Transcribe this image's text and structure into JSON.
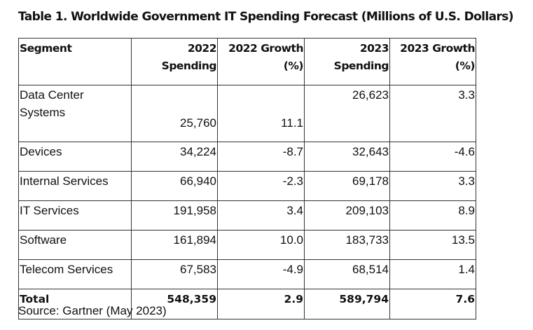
{
  "title": "Table 1. Worldwide Government IT Spending Forecast (Millions of U.S. Dollars)",
  "columns": [
    "Segment",
    "2022 Spending",
    "2022 Growth (%)",
    "2023 Spending",
    "2023 Growth (%)"
  ],
  "header_lines": [
    [
      "Segment",
      ""
    ],
    [
      "2022",
      "Spending"
    ],
    [
      "2022 Growth",
      "(%)"
    ],
    [
      "2023",
      "Spending"
    ],
    [
      "2023 Growth",
      "(%)"
    ]
  ],
  "rows": [
    {
      "segment": "Data Center Systems",
      "s2022": "25,760",
      "g2022": "11.1",
      "s2023": "26,623",
      "g2023": "3.3"
    },
    {
      "segment": "Devices",
      "s2022": "34,224",
      "g2022": "-8.7",
      "s2023": "32,643",
      "g2023": "-4.6"
    },
    {
      "segment": "Internal Services",
      "s2022": "66,940",
      "g2022": "-2.3",
      "s2023": "69,178",
      "g2023": "3.3"
    },
    {
      "segment": "IT Services",
      "s2022": "191,958",
      "g2022": "3.4",
      "s2023": "209,103",
      "g2023": "8.9"
    },
    {
      "segment": "Software",
      "s2022": "161,894",
      "g2022": "10.0",
      "s2023": "183,733",
      "g2023": "13.5"
    },
    {
      "segment": "Telecom Services",
      "s2022": "67,583",
      "g2022": "-4.9",
      "s2023": "68,514",
      "g2023": "1.4"
    }
  ],
  "total": {
    "segment": "Total",
    "s2022": "548,359",
    "g2022": "2.9",
    "s2023": "589,794",
    "g2023": "7.6"
  },
  "source": "Source: Gartner (May 2023)"
}
